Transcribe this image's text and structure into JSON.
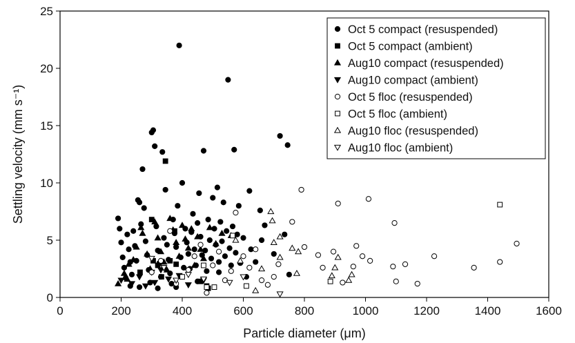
{
  "chart_data": {
    "type": "scatter",
    "xlabel": "Particle diameter (μm)",
    "ylabel": "Settling velocity (mm s⁻¹)",
    "xlim": [
      0,
      1600
    ],
    "ylim": [
      0,
      25
    ],
    "xticks": [
      0,
      200,
      400,
      600,
      800,
      1000,
      1200,
      1400,
      1600
    ],
    "yticks": [
      0,
      5,
      10,
      15,
      20,
      25
    ],
    "grid": false,
    "legend_position": "top-right",
    "series": [
      {
        "name": "Oct 5 compact (resuspended)",
        "marker": "circle",
        "filled": true,
        "points": [
          [
            190,
            6.9
          ],
          [
            195,
            6.0
          ],
          [
            200,
            4.8
          ],
          [
            205,
            3.5
          ],
          [
            210,
            2.6
          ],
          [
            215,
            1.7
          ],
          [
            220,
            5.5
          ],
          [
            225,
            4.2
          ],
          [
            230,
            3.1
          ],
          [
            235,
            2.0
          ],
          [
            240,
            5.8
          ],
          [
            245,
            4.5
          ],
          [
            250,
            3.2
          ],
          [
            255,
            8.5
          ],
          [
            260,
            8.3
          ],
          [
            265,
            6.4
          ],
          [
            270,
            11.2
          ],
          [
            275,
            7.8
          ],
          [
            280,
            4.9
          ],
          [
            285,
            3.7
          ],
          [
            290,
            2.4
          ],
          [
            295,
            1.3
          ],
          [
            300,
            14.4
          ],
          [
            305,
            14.6
          ],
          [
            310,
            13.2
          ],
          [
            315,
            6.2
          ],
          [
            320,
            4.1
          ],
          [
            325,
            3.0
          ],
          [
            330,
            1.8
          ],
          [
            335,
            12.7
          ],
          [
            340,
            5.2
          ],
          [
            345,
            9.4
          ],
          [
            350,
            4.6
          ],
          [
            355,
            3.3
          ],
          [
            360,
            2.1
          ],
          [
            365,
            1.2
          ],
          [
            370,
            6.8
          ],
          [
            375,
            5.6
          ],
          [
            380,
            4.4
          ],
          [
            385,
            8.0
          ],
          [
            390,
            22.0
          ],
          [
            395,
            3.5
          ],
          [
            400,
            10.0
          ],
          [
            405,
            2.6
          ],
          [
            410,
            6.0
          ],
          [
            415,
            4.8
          ],
          [
            420,
            3.8
          ],
          [
            425,
            2.5
          ],
          [
            430,
            5.7
          ],
          [
            435,
            7.3
          ],
          [
            440,
            4.2
          ],
          [
            445,
            2.8
          ],
          [
            450,
            6.5
          ],
          [
            455,
            9.1
          ],
          [
            460,
            5.3
          ],
          [
            465,
            3.7
          ],
          [
            470,
            12.8
          ],
          [
            475,
            4.1
          ],
          [
            480,
            2.3
          ],
          [
            485,
            6.8
          ],
          [
            490,
            5.0
          ],
          [
            495,
            3.4
          ],
          [
            500,
            8.7
          ],
          [
            505,
            6.0
          ],
          [
            510,
            4.6
          ],
          [
            515,
            9.6
          ],
          [
            520,
            3.1
          ],
          [
            525,
            6.6
          ],
          [
            530,
            4.9
          ],
          [
            535,
            8.3
          ],
          [
            540,
            3.6
          ],
          [
            545,
            5.8
          ],
          [
            550,
            19.0
          ],
          [
            555,
            4.3
          ],
          [
            560,
            2.8
          ],
          [
            565,
            6.2
          ],
          [
            570,
            12.9
          ],
          [
            575,
            3.9
          ],
          [
            580,
            5.5
          ],
          [
            585,
            8.0
          ],
          [
            600,
            5.2
          ],
          [
            610,
            1.8
          ],
          [
            620,
            9.3
          ],
          [
            625,
            4.2
          ],
          [
            640,
            3.1
          ],
          [
            655,
            7.6
          ],
          [
            660,
            5.0
          ],
          [
            670,
            6.3
          ],
          [
            700,
            3.8
          ],
          [
            720,
            14.1
          ],
          [
            735,
            5.5
          ],
          [
            745,
            13.3
          ],
          [
            750,
            2.0
          ],
          [
            230,
            1.0
          ],
          [
            260,
            0.9
          ],
          [
            320,
            0.8
          ],
          [
            380,
            0.9
          ],
          [
            450,
            1.4
          ],
          [
            520,
            2.2
          ],
          [
            590,
            3.0
          ]
        ]
      },
      {
        "name": "Oct 5 compact (ambient)",
        "marker": "square",
        "filled": true,
        "points": [
          [
            262,
            2.2
          ],
          [
            300,
            6.8
          ],
          [
            305,
            3.2
          ],
          [
            320,
            2.8
          ],
          [
            332,
            1.8
          ],
          [
            340,
            2.6
          ],
          [
            345,
            11.9
          ],
          [
            360,
            3.2
          ],
          [
            375,
            5.8
          ],
          [
            380,
            2.9
          ],
          [
            460,
            1.4
          ],
          [
            480,
            1.0
          ],
          [
            485,
            0.8
          ]
        ]
      },
      {
        "name": "Aug10 compact (resuspended)",
        "marker": "triangle-up",
        "filled": true,
        "points": [
          [
            190,
            1.2
          ],
          [
            210,
            2.1
          ],
          [
            220,
            1.6
          ],
          [
            225,
            2.9
          ],
          [
            240,
            3.3
          ],
          [
            250,
            4.4
          ],
          [
            265,
            6.1
          ],
          [
            270,
            5.6
          ],
          [
            285,
            3.8
          ],
          [
            295,
            2.5
          ],
          [
            310,
            6.6
          ],
          [
            320,
            5.2
          ],
          [
            330,
            4.0
          ],
          [
            340,
            3.1
          ],
          [
            350,
            2.4
          ],
          [
            360,
            6.9
          ],
          [
            370,
            5.9
          ],
          [
            380,
            4.8
          ],
          [
            390,
            3.6
          ],
          [
            400,
            6.3
          ],
          [
            410,
            5.1
          ],
          [
            420,
            4.3
          ],
          [
            430,
            6.0
          ],
          [
            440,
            2.8
          ],
          [
            450,
            5.3
          ],
          [
            460,
            4.2
          ],
          [
            470,
            3.4
          ],
          [
            490,
            6.1
          ],
          [
            510,
            4.7
          ],
          [
            530,
            5.6
          ],
          [
            560,
            5.4
          ]
        ]
      },
      {
        "name": "Aug10 compact (ambient)",
        "marker": "triangle-down",
        "filled": true,
        "points": [
          [
            200,
            1.5
          ],
          [
            235,
            1.2
          ],
          [
            260,
            1.8
          ],
          [
            280,
            1.0
          ],
          [
            300,
            2.2
          ],
          [
            310,
            1.3
          ],
          [
            330,
            2.4
          ],
          [
            355,
            1.6
          ],
          [
            390,
            1.9
          ],
          [
            420,
            1.1
          ],
          [
            470,
            1.5
          ]
        ]
      },
      {
        "name": "Oct 5 floc (resuspended)",
        "marker": "circle",
        "filled": false,
        "points": [
          [
            300,
            2.2
          ],
          [
            330,
            3.2
          ],
          [
            360,
            5.8
          ],
          [
            380,
            1.2
          ],
          [
            420,
            2.4
          ],
          [
            440,
            3.6
          ],
          [
            460,
            4.6
          ],
          [
            480,
            0.4
          ],
          [
            500,
            2.8
          ],
          [
            520,
            4.0
          ],
          [
            540,
            1.5
          ],
          [
            560,
            2.3
          ],
          [
            575,
            7.4
          ],
          [
            600,
            3.6
          ],
          [
            620,
            2.6
          ],
          [
            640,
            4.2
          ],
          [
            660,
            1.5
          ],
          [
            680,
            1.1
          ],
          [
            700,
            1.8
          ],
          [
            715,
            2.9
          ],
          [
            760,
            6.6
          ],
          [
            790,
            9.4
          ],
          [
            800,
            4.4
          ],
          [
            845,
            3.7
          ],
          [
            860,
            2.6
          ],
          [
            895,
            4.0
          ],
          [
            910,
            8.2
          ],
          [
            925,
            1.3
          ],
          [
            960,
            2.7
          ],
          [
            970,
            4.5
          ],
          [
            990,
            3.6
          ],
          [
            1010,
            8.6
          ],
          [
            1015,
            3.2
          ],
          [
            1090,
            2.7
          ],
          [
            1095,
            6.5
          ],
          [
            1100,
            1.4
          ],
          [
            1130,
            2.9
          ],
          [
            1170,
            1.2
          ],
          [
            1225,
            3.6
          ],
          [
            1355,
            2.6
          ],
          [
            1440,
            3.1
          ],
          [
            1495,
            4.7
          ]
        ]
      },
      {
        "name": "Oct 5 floc (ambient)",
        "marker": "square",
        "filled": false,
        "points": [
          [
            400,
            1.8
          ],
          [
            470,
            2.8
          ],
          [
            480,
            0.9
          ],
          [
            505,
            0.9
          ],
          [
            565,
            5.4
          ],
          [
            610,
            1.0
          ],
          [
            885,
            1.4
          ],
          [
            1440,
            8.1
          ]
        ]
      },
      {
        "name": "Aug10 floc (resuspended)",
        "marker": "triangle-up",
        "filled": false,
        "points": [
          [
            575,
            5.0
          ],
          [
            590,
            3.2
          ],
          [
            640,
            0.6
          ],
          [
            660,
            2.5
          ],
          [
            700,
            4.8
          ],
          [
            690,
            7.5
          ],
          [
            695,
            6.7
          ],
          [
            720,
            3.5
          ],
          [
            760,
            4.3
          ],
          [
            780,
            4.0
          ],
          [
            775,
            2.1
          ],
          [
            890,
            1.9
          ],
          [
            900,
            2.6
          ],
          [
            910,
            3.5
          ],
          [
            945,
            1.5
          ],
          [
            955,
            2.0
          ],
          [
            720,
            5.3
          ]
        ]
      },
      {
        "name": "Aug10 floc (ambient)",
        "marker": "triangle-down",
        "filled": false,
        "points": [
          [
            300,
            3.4
          ],
          [
            340,
            2.6
          ],
          [
            380,
            1.5
          ],
          [
            420,
            2.0
          ],
          [
            470,
            1.6
          ],
          [
            555,
            1.3
          ],
          [
            600,
            1.8
          ],
          [
            720,
            0.3
          ]
        ]
      }
    ]
  }
}
